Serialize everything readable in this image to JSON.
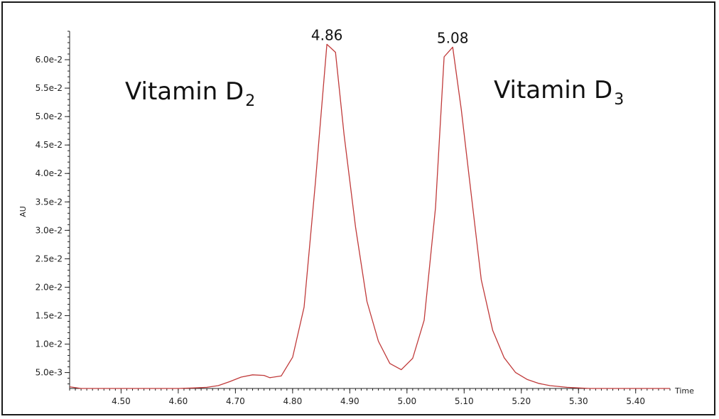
{
  "chart_data": {
    "type": "line",
    "xlabel": "Time",
    "ylabel": "AU",
    "xlim": [
      4.41,
      5.46
    ],
    "ylim": [
      0.0022,
      0.065
    ],
    "x_ticks": [
      4.5,
      4.6,
      4.7,
      4.8,
      4.9,
      5.0,
      5.1,
      5.2,
      5.3,
      5.4
    ],
    "x_tick_labels": [
      "4.50",
      "4.60",
      "4.70",
      "4.80",
      "4.90",
      "5.00",
      "5.10",
      "5.20",
      "5.30",
      "5.40"
    ],
    "y_ticks": [
      0.005,
      0.01,
      0.015,
      0.02,
      0.025,
      0.03,
      0.035,
      0.04,
      0.045,
      0.05,
      0.055,
      0.06
    ],
    "y_tick_labels": [
      "5.0e-3",
      "1.0e-2",
      "1.5e-2",
      "2.0e-2",
      "2.5e-2",
      "3.0e-2",
      "3.5e-2",
      "4.0e-2",
      "4.5e-2",
      "5.0e-2",
      "5.5e-2",
      "6.0e-2"
    ],
    "grid": false,
    "series": [
      {
        "color": "#c03a3a",
        "x": [
          4.41,
          4.43,
          4.46,
          4.5,
          4.55,
          4.6,
          4.63,
          4.65,
          4.67,
          4.69,
          4.71,
          4.73,
          4.75,
          4.76,
          4.78,
          4.8,
          4.82,
          4.84,
          4.86,
          4.875,
          4.89,
          4.91,
          4.93,
          4.95,
          4.97,
          4.99,
          5.01,
          5.03,
          5.05,
          5.065,
          5.08,
          5.095,
          5.11,
          5.13,
          5.15,
          5.17,
          5.19,
          5.21,
          5.23,
          5.25,
          5.28,
          5.32,
          5.37,
          5.42,
          5.46
        ],
        "y": [
          0.0025,
          0.0022,
          0.0022,
          0.0022,
          0.0022,
          0.0022,
          0.0023,
          0.0024,
          0.0027,
          0.0034,
          0.0042,
          0.0046,
          0.0045,
          0.0041,
          0.0044,
          0.0077,
          0.0165,
          0.0385,
          0.0627,
          0.0613,
          0.0468,
          0.0306,
          0.0175,
          0.0105,
          0.0066,
          0.0055,
          0.0075,
          0.0142,
          0.034,
          0.0605,
          0.0622,
          0.0512,
          0.0384,
          0.0213,
          0.0124,
          0.0076,
          0.005,
          0.0038,
          0.0031,
          0.0027,
          0.0024,
          0.0022,
          0.0022,
          0.0022,
          0.0022
        ]
      }
    ],
    "annotations": [
      {
        "text": "4.86",
        "x": 4.86,
        "y": 0.0627
      },
      {
        "text": "5.08",
        "x": 5.08,
        "y": 0.0622
      }
    ]
  },
  "compounds": [
    {
      "name": "Vitamin D",
      "subscript": "2"
    },
    {
      "name": "Vitamin D",
      "subscript": "3"
    }
  ],
  "colors": {
    "trace": "#c03a3a",
    "axis": "#222222"
  }
}
